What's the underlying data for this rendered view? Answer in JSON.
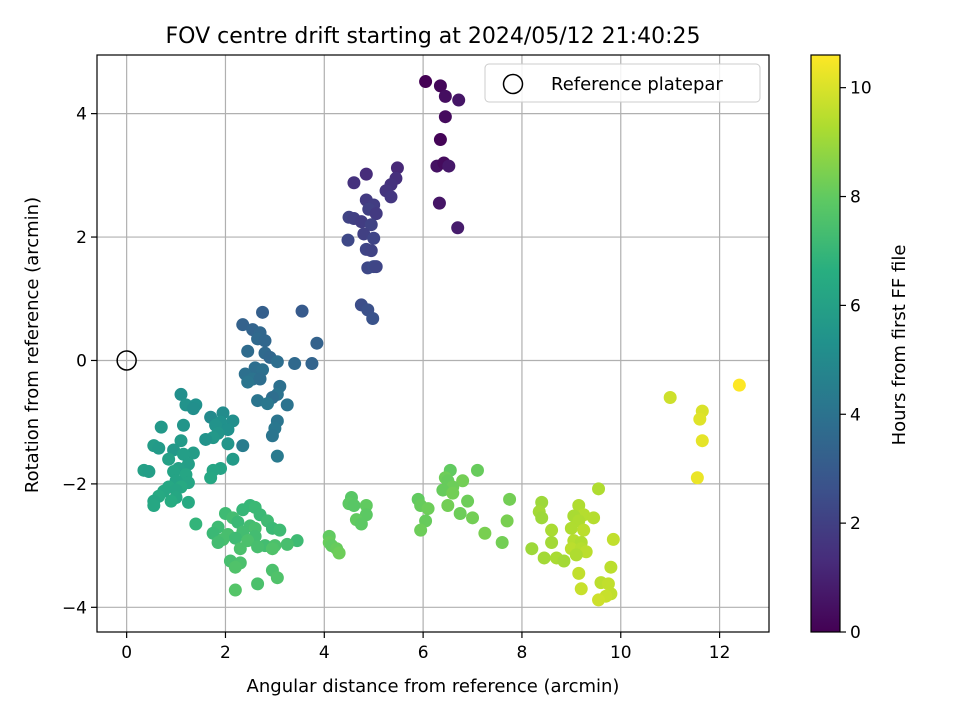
{
  "chart_data": {
    "type": "scatter",
    "title": "FOV centre drift starting at 2024/05/12 21:40:25",
    "xlabel": "Angular distance from reference (arcmin)",
    "ylabel": "Rotation from reference (arcmin)",
    "xlim": [
      -0.6,
      13.0
    ],
    "ylim": [
      -4.4,
      4.95
    ],
    "xticks": [
      0,
      2,
      4,
      6,
      8,
      10,
      12
    ],
    "yticks": [
      -4,
      -2,
      0,
      2,
      4
    ],
    "grid": true,
    "legend": {
      "placement": "top-right",
      "entries": [
        "Reference platepar"
      ]
    },
    "reference_point": {
      "x": 0,
      "y": 0
    },
    "colorbar": {
      "label": "Hours from first FF file",
      "colormap": "viridis",
      "range": [
        0,
        10.6
      ],
      "ticks": [
        0,
        2,
        4,
        6,
        8,
        10
      ]
    },
    "points": [
      {
        "x": 6.05,
        "y": 4.52,
        "c": 0.0
      },
      {
        "x": 6.35,
        "y": 4.45,
        "c": 0.2
      },
      {
        "x": 6.45,
        "y": 4.28,
        "c": 0.4
      },
      {
        "x": 6.72,
        "y": 4.22,
        "c": 0.6
      },
      {
        "x": 6.45,
        "y": 3.95,
        "c": 0.3
      },
      {
        "x": 6.35,
        "y": 3.58,
        "c": 0.1
      },
      {
        "x": 6.28,
        "y": 3.15,
        "c": 0.5
      },
      {
        "x": 6.42,
        "y": 3.2,
        "c": 0.3
      },
      {
        "x": 6.52,
        "y": 3.15,
        "c": 0.7
      },
      {
        "x": 6.33,
        "y": 2.55,
        "c": 0.6
      },
      {
        "x": 6.7,
        "y": 2.15,
        "c": 0.8
      },
      {
        "x": 5.48,
        "y": 3.12,
        "c": 1.2
      },
      {
        "x": 5.45,
        "y": 2.95,
        "c": 1.4
      },
      {
        "x": 5.35,
        "y": 2.85,
        "c": 1.5
      },
      {
        "x": 5.25,
        "y": 2.75,
        "c": 1.6
      },
      {
        "x": 4.85,
        "y": 3.02,
        "c": 1.3
      },
      {
        "x": 4.6,
        "y": 2.88,
        "c": 1.5
      },
      {
        "x": 5.35,
        "y": 2.65,
        "c": 1.7
      },
      {
        "x": 4.85,
        "y": 2.6,
        "c": 1.8
      },
      {
        "x": 5.0,
        "y": 2.52,
        "c": 1.9
      },
      {
        "x": 4.9,
        "y": 2.45,
        "c": 2.0
      },
      {
        "x": 5.05,
        "y": 2.38,
        "c": 1.8
      },
      {
        "x": 4.5,
        "y": 2.32,
        "c": 2.1
      },
      {
        "x": 4.6,
        "y": 2.3,
        "c": 2.0
      },
      {
        "x": 4.75,
        "y": 2.25,
        "c": 1.9
      },
      {
        "x": 4.95,
        "y": 2.2,
        "c": 2.1
      },
      {
        "x": 4.8,
        "y": 2.05,
        "c": 2.0
      },
      {
        "x": 5.0,
        "y": 1.98,
        "c": 2.2
      },
      {
        "x": 4.48,
        "y": 1.95,
        "c": 2.3
      },
      {
        "x": 4.85,
        "y": 1.8,
        "c": 2.2
      },
      {
        "x": 4.95,
        "y": 1.78,
        "c": 2.1
      },
      {
        "x": 4.88,
        "y": 1.5,
        "c": 2.3
      },
      {
        "x": 5.0,
        "y": 1.52,
        "c": 2.4
      },
      {
        "x": 5.05,
        "y": 1.52,
        "c": 2.2
      },
      {
        "x": 4.75,
        "y": 0.9,
        "c": 2.5
      },
      {
        "x": 4.88,
        "y": 0.82,
        "c": 2.6
      },
      {
        "x": 4.98,
        "y": 0.68,
        "c": 2.7
      },
      {
        "x": 3.55,
        "y": 0.8,
        "c": 3.0
      },
      {
        "x": 2.75,
        "y": 0.78,
        "c": 3.2
      },
      {
        "x": 2.35,
        "y": 0.58,
        "c": 3.3
      },
      {
        "x": 2.55,
        "y": 0.5,
        "c": 3.4
      },
      {
        "x": 2.7,
        "y": 0.45,
        "c": 3.5
      },
      {
        "x": 2.65,
        "y": 0.35,
        "c": 3.6
      },
      {
        "x": 2.8,
        "y": 0.32,
        "c": 3.5
      },
      {
        "x": 3.85,
        "y": 0.28,
        "c": 3.3
      },
      {
        "x": 2.45,
        "y": 0.15,
        "c": 3.7
      },
      {
        "x": 2.8,
        "y": 0.12,
        "c": 3.6
      },
      {
        "x": 2.9,
        "y": 0.05,
        "c": 3.5
      },
      {
        "x": 3.05,
        "y": -0.02,
        "c": 3.8
      },
      {
        "x": 3.4,
        "y": -0.05,
        "c": 3.6
      },
      {
        "x": 3.75,
        "y": -0.05,
        "c": 3.4
      },
      {
        "x": 2.6,
        "y": -0.12,
        "c": 3.8
      },
      {
        "x": 2.75,
        "y": -0.15,
        "c": 3.9
      },
      {
        "x": 2.4,
        "y": -0.22,
        "c": 3.9
      },
      {
        "x": 2.55,
        "y": -0.3,
        "c": 4.0
      },
      {
        "x": 2.7,
        "y": -0.3,
        "c": 3.8
      },
      {
        "x": 2.45,
        "y": -0.35,
        "c": 4.1
      },
      {
        "x": 3.1,
        "y": -0.42,
        "c": 3.9
      },
      {
        "x": 3.05,
        "y": -0.55,
        "c": 4.0
      },
      {
        "x": 2.95,
        "y": -0.6,
        "c": 3.8
      },
      {
        "x": 2.65,
        "y": -0.65,
        "c": 4.1
      },
      {
        "x": 2.85,
        "y": -0.7,
        "c": 4.2
      },
      {
        "x": 3.25,
        "y": -0.72,
        "c": 4.0
      },
      {
        "x": 3.05,
        "y": -0.98,
        "c": 4.1
      },
      {
        "x": 3.0,
        "y": -1.1,
        "c": 4.2
      },
      {
        "x": 2.95,
        "y": -1.22,
        "c": 4.1
      },
      {
        "x": 3.05,
        "y": -1.55,
        "c": 4.3
      },
      {
        "x": 2.35,
        "y": -1.38,
        "c": 4.4
      },
      {
        "x": 1.1,
        "y": -0.55,
        "c": 5.2
      },
      {
        "x": 1.2,
        "y": -0.72,
        "c": 5.4
      },
      {
        "x": 1.4,
        "y": -0.72,
        "c": 5.3
      },
      {
        "x": 1.35,
        "y": -0.78,
        "c": 5.2
      },
      {
        "x": 1.95,
        "y": -0.85,
        "c": 5.1
      },
      {
        "x": 1.7,
        "y": -0.92,
        "c": 5.0
      },
      {
        "x": 2.15,
        "y": -0.98,
        "c": 5.2
      },
      {
        "x": 1.9,
        "y": -1.0,
        "c": 5.3
      },
      {
        "x": 1.8,
        "y": -1.05,
        "c": 5.4
      },
      {
        "x": 1.15,
        "y": -1.05,
        "c": 5.5
      },
      {
        "x": 0.7,
        "y": -1.08,
        "c": 5.6
      },
      {
        "x": 2.05,
        "y": -1.12,
        "c": 5.3
      },
      {
        "x": 1.85,
        "y": -1.18,
        "c": 5.5
      },
      {
        "x": 1.75,
        "y": -1.25,
        "c": 5.6
      },
      {
        "x": 1.6,
        "y": -1.28,
        "c": 5.4
      },
      {
        "x": 1.1,
        "y": -1.3,
        "c": 5.7
      },
      {
        "x": 2.05,
        "y": -1.35,
        "c": 5.5
      },
      {
        "x": 0.55,
        "y": -1.38,
        "c": 5.8
      },
      {
        "x": 0.65,
        "y": -1.42,
        "c": 5.7
      },
      {
        "x": 0.95,
        "y": -1.45,
        "c": 5.6
      },
      {
        "x": 1.35,
        "y": -1.5,
        "c": 5.8
      },
      {
        "x": 1.15,
        "y": -1.52,
        "c": 5.9
      },
      {
        "x": 2.15,
        "y": -1.6,
        "c": 5.7
      },
      {
        "x": 0.85,
        "y": -1.6,
        "c": 6.0
      },
      {
        "x": 1.25,
        "y": -1.68,
        "c": 5.9
      },
      {
        "x": 1.05,
        "y": -1.75,
        "c": 6.0
      },
      {
        "x": 1.9,
        "y": -1.75,
        "c": 6.1
      },
      {
        "x": 1.75,
        "y": -1.78,
        "c": 6.2
      },
      {
        "x": 0.35,
        "y": -1.78,
        "c": 6.0
      },
      {
        "x": 0.45,
        "y": -1.8,
        "c": 5.9
      },
      {
        "x": 0.95,
        "y": -1.8,
        "c": 6.1
      },
      {
        "x": 1.2,
        "y": -1.85,
        "c": 6.2
      },
      {
        "x": 1.7,
        "y": -1.9,
        "c": 6.3
      },
      {
        "x": 1.0,
        "y": -1.95,
        "c": 6.1
      },
      {
        "x": 1.25,
        "y": -1.98,
        "c": 6.2
      },
      {
        "x": 0.85,
        "y": -2.05,
        "c": 6.3
      },
      {
        "x": 1.1,
        "y": -2.05,
        "c": 6.4
      },
      {
        "x": 1.0,
        "y": -2.1,
        "c": 6.2
      },
      {
        "x": 0.75,
        "y": -2.12,
        "c": 6.3
      },
      {
        "x": 0.65,
        "y": -2.2,
        "c": 6.4
      },
      {
        "x": 1.0,
        "y": -2.22,
        "c": 6.3
      },
      {
        "x": 0.9,
        "y": -2.28,
        "c": 6.5
      },
      {
        "x": 1.25,
        "y": -2.3,
        "c": 6.4
      },
      {
        "x": 0.55,
        "y": -2.28,
        "c": 6.2
      },
      {
        "x": 0.55,
        "y": -2.35,
        "c": 6.3
      },
      {
        "x": 2.5,
        "y": -2.35,
        "c": 7.0
      },
      {
        "x": 2.6,
        "y": -2.38,
        "c": 7.1
      },
      {
        "x": 2.35,
        "y": -2.42,
        "c": 7.0
      },
      {
        "x": 2.0,
        "y": -2.48,
        "c": 7.2
      },
      {
        "x": 2.7,
        "y": -2.5,
        "c": 7.1
      },
      {
        "x": 2.15,
        "y": -2.55,
        "c": 7.3
      },
      {
        "x": 2.85,
        "y": -2.6,
        "c": 7.2
      },
      {
        "x": 2.25,
        "y": -2.62,
        "c": 7.1
      },
      {
        "x": 1.4,
        "y": -2.65,
        "c": 6.9
      },
      {
        "x": 2.5,
        "y": -2.68,
        "c": 7.3
      },
      {
        "x": 1.85,
        "y": -2.7,
        "c": 7.2
      },
      {
        "x": 2.6,
        "y": -2.72,
        "c": 7.4
      },
      {
        "x": 2.95,
        "y": -2.72,
        "c": 7.1
      },
      {
        "x": 3.1,
        "y": -2.75,
        "c": 7.2
      },
      {
        "x": 2.35,
        "y": -2.78,
        "c": 7.3
      },
      {
        "x": 1.75,
        "y": -2.8,
        "c": 7.1
      },
      {
        "x": 2.05,
        "y": -2.82,
        "c": 7.4
      },
      {
        "x": 2.6,
        "y": -2.85,
        "c": 7.3
      },
      {
        "x": 2.2,
        "y": -2.88,
        "c": 7.2
      },
      {
        "x": 1.95,
        "y": -2.9,
        "c": 7.4
      },
      {
        "x": 2.45,
        "y": -2.92,
        "c": 7.5
      },
      {
        "x": 1.85,
        "y": -2.95,
        "c": 7.3
      },
      {
        "x": 3.45,
        "y": -2.92,
        "c": 7.2
      },
      {
        "x": 3.25,
        "y": -2.98,
        "c": 7.4
      },
      {
        "x": 2.8,
        "y": -3.0,
        "c": 7.3
      },
      {
        "x": 3.0,
        "y": -3.0,
        "c": 7.5
      },
      {
        "x": 2.65,
        "y": -3.02,
        "c": 7.4
      },
      {
        "x": 2.95,
        "y": -3.05,
        "c": 7.6
      },
      {
        "x": 2.3,
        "y": -3.05,
        "c": 7.5
      },
      {
        "x": 2.1,
        "y": -3.25,
        "c": 7.4
      },
      {
        "x": 2.3,
        "y": -3.28,
        "c": 7.5
      },
      {
        "x": 2.2,
        "y": -3.35,
        "c": 7.6
      },
      {
        "x": 2.95,
        "y": -3.4,
        "c": 7.5
      },
      {
        "x": 3.05,
        "y": -3.52,
        "c": 7.6
      },
      {
        "x": 2.65,
        "y": -3.62,
        "c": 7.5
      },
      {
        "x": 2.2,
        "y": -3.72,
        "c": 7.7
      },
      {
        "x": 4.55,
        "y": -2.22,
        "c": 7.8
      },
      {
        "x": 4.5,
        "y": -2.32,
        "c": 7.9
      },
      {
        "x": 4.6,
        "y": -2.35,
        "c": 7.8
      },
      {
        "x": 4.85,
        "y": -2.35,
        "c": 8.0
      },
      {
        "x": 4.85,
        "y": -2.5,
        "c": 7.9
      },
      {
        "x": 4.65,
        "y": -2.58,
        "c": 8.0
      },
      {
        "x": 4.75,
        "y": -2.65,
        "c": 7.9
      },
      {
        "x": 4.1,
        "y": -2.85,
        "c": 8.0
      },
      {
        "x": 4.1,
        "y": -2.95,
        "c": 8.1
      },
      {
        "x": 4.15,
        "y": -3.0,
        "c": 8.0
      },
      {
        "x": 4.25,
        "y": -3.05,
        "c": 8.1
      },
      {
        "x": 4.3,
        "y": -3.12,
        "c": 8.2
      },
      {
        "x": 6.55,
        "y": -1.78,
        "c": 8.0
      },
      {
        "x": 7.1,
        "y": -1.78,
        "c": 8.1
      },
      {
        "x": 6.45,
        "y": -1.9,
        "c": 8.2
      },
      {
        "x": 6.5,
        "y": -1.95,
        "c": 8.1
      },
      {
        "x": 6.8,
        "y": -1.95,
        "c": 8.3
      },
      {
        "x": 6.6,
        "y": -2.05,
        "c": 8.2
      },
      {
        "x": 6.4,
        "y": -2.1,
        "c": 8.1
      },
      {
        "x": 6.6,
        "y": -2.15,
        "c": 8.3
      },
      {
        "x": 5.9,
        "y": -2.25,
        "c": 8.0
      },
      {
        "x": 6.9,
        "y": -2.28,
        "c": 8.2
      },
      {
        "x": 7.75,
        "y": -2.25,
        "c": 8.3
      },
      {
        "x": 5.95,
        "y": -2.35,
        "c": 8.1
      },
      {
        "x": 6.1,
        "y": -2.4,
        "c": 8.2
      },
      {
        "x": 6.5,
        "y": -2.35,
        "c": 8.3
      },
      {
        "x": 6.75,
        "y": -2.48,
        "c": 8.2
      },
      {
        "x": 7.0,
        "y": -2.55,
        "c": 8.3
      },
      {
        "x": 7.7,
        "y": -2.6,
        "c": 8.4
      },
      {
        "x": 6.05,
        "y": -2.6,
        "c": 8.1
      },
      {
        "x": 5.95,
        "y": -2.75,
        "c": 8.2
      },
      {
        "x": 7.25,
        "y": -2.8,
        "c": 8.4
      },
      {
        "x": 7.6,
        "y": -2.95,
        "c": 8.3
      },
      {
        "x": 8.4,
        "y": -2.3,
        "c": 9.0
      },
      {
        "x": 8.35,
        "y": -2.45,
        "c": 9.1
      },
      {
        "x": 8.4,
        "y": -2.55,
        "c": 9.0
      },
      {
        "x": 8.6,
        "y": -2.75,
        "c": 9.2
      },
      {
        "x": 8.6,
        "y": -2.95,
        "c": 9.1
      },
      {
        "x": 8.2,
        "y": -3.05,
        "c": 9.0
      },
      {
        "x": 8.45,
        "y": -3.2,
        "c": 9.1
      },
      {
        "x": 8.7,
        "y": -3.2,
        "c": 9.2
      },
      {
        "x": 8.85,
        "y": -3.25,
        "c": 9.1
      },
      {
        "x": 9.15,
        "y": -2.35,
        "c": 9.3
      },
      {
        "x": 9.25,
        "y": -2.5,
        "c": 9.4
      },
      {
        "x": 9.05,
        "y": -2.52,
        "c": 9.2
      },
      {
        "x": 9.15,
        "y": -2.6,
        "c": 9.3
      },
      {
        "x": 9.45,
        "y": -2.55,
        "c": 9.4
      },
      {
        "x": 9.0,
        "y": -2.72,
        "c": 9.3
      },
      {
        "x": 9.25,
        "y": -2.75,
        "c": 9.5
      },
      {
        "x": 9.55,
        "y": -2.08,
        "c": 9.3
      },
      {
        "x": 9.05,
        "y": -2.92,
        "c": 9.4
      },
      {
        "x": 9.2,
        "y": -2.95,
        "c": 9.3
      },
      {
        "x": 9.0,
        "y": -3.05,
        "c": 9.5
      },
      {
        "x": 9.2,
        "y": -3.05,
        "c": 9.4
      },
      {
        "x": 9.3,
        "y": -3.1,
        "c": 9.5
      },
      {
        "x": 9.1,
        "y": -3.15,
        "c": 9.3
      },
      {
        "x": 9.85,
        "y": -2.9,
        "c": 9.6
      },
      {
        "x": 9.8,
        "y": -3.35,
        "c": 9.5
      },
      {
        "x": 9.15,
        "y": -3.45,
        "c": 9.6
      },
      {
        "x": 9.6,
        "y": -3.6,
        "c": 9.5
      },
      {
        "x": 9.75,
        "y": -3.62,
        "c": 9.6
      },
      {
        "x": 9.2,
        "y": -3.7,
        "c": 9.7
      },
      {
        "x": 9.8,
        "y": -3.78,
        "c": 9.6
      },
      {
        "x": 9.7,
        "y": -3.82,
        "c": 9.7
      },
      {
        "x": 9.55,
        "y": -3.88,
        "c": 9.8
      },
      {
        "x": 11.0,
        "y": -0.6,
        "c": 9.8
      },
      {
        "x": 11.65,
        "y": -0.82,
        "c": 10.0
      },
      {
        "x": 11.6,
        "y": -0.95,
        "c": 10.1
      },
      {
        "x": 11.65,
        "y": -1.3,
        "c": 10.2
      },
      {
        "x": 11.55,
        "y": -1.9,
        "c": 10.3
      },
      {
        "x": 12.4,
        "y": -0.4,
        "c": 10.6
      }
    ]
  }
}
